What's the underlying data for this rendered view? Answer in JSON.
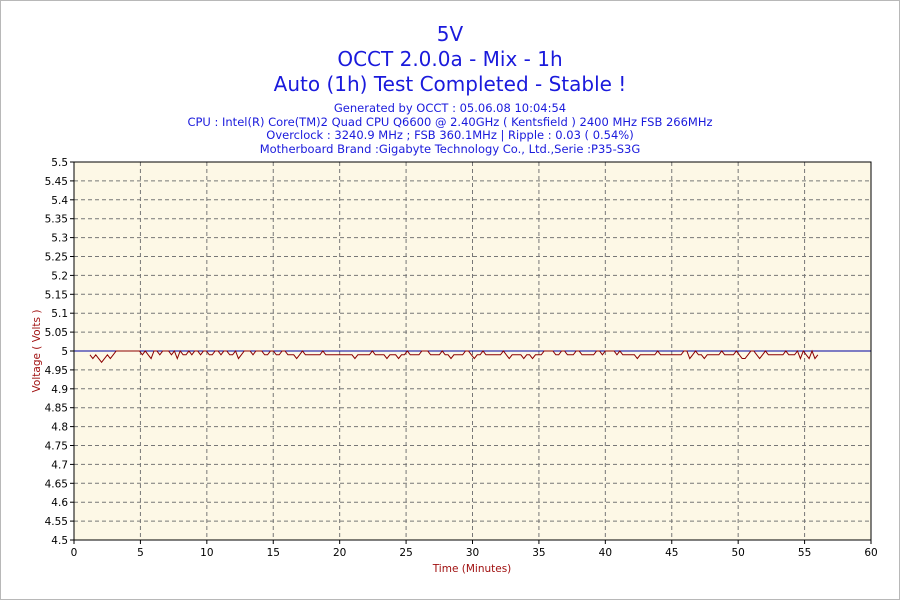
{
  "header": {
    "title": "5V",
    "subtitle": "OCCT 2.0.0a - Mix - 1h",
    "status": "Auto (1h) Test Completed - Stable !",
    "info_lines": [
      "Generated by OCCT : 05.06.08 10:04:54",
      "CPU : Intel(R) Core(TM)2 Quad CPU Q6600 @ 2.40GHz ( Kentsfield ) 2400 MHz FSB 266MHz",
      "Overclock : 3240.9 MHz ; FSB 360.1MHz | Ripple : 0.03 ( 0.54%)",
      "Motherboard Brand :Gigabyte Technology Co., Ltd.,Serie :P35-S3G"
    ]
  },
  "colors": {
    "title": "#1a1adc",
    "plot_background": "#fdf8e6",
    "series": "#8b0000",
    "reference_line": "#0000a0",
    "axis_label": "#a01010"
  },
  "chart_data": {
    "type": "line",
    "xlabel": "Time (Minutes)",
    "ylabel": "Voltage ( Volts )",
    "xlim": [
      0,
      60
    ],
    "ylim": [
      4.5,
      5.5
    ],
    "x_ticks": [
      "0",
      "5",
      "10",
      "15",
      "20",
      "25",
      "30",
      "35",
      "40",
      "45",
      "50",
      "55",
      "60"
    ],
    "y_ticks": [
      "5.5",
      "5.45",
      "5.4",
      "5.35",
      "5.3",
      "5.25",
      "5.2",
      "5.15",
      "5.1",
      "5.05",
      "5",
      "4.95",
      "4.9",
      "4.85",
      "4.8",
      "4.75",
      "4.7",
      "4.65",
      "4.6",
      "4.55",
      "4.5"
    ],
    "grid": true,
    "reference_value": 5.0,
    "series": [
      {
        "x_start": 1.2,
        "x_end": 56.0,
        "min": 4.97,
        "max": 5.0,
        "values": [
          4.99,
          4.98,
          4.99,
          4.98,
          4.97,
          4.98,
          4.99,
          4.98,
          4.99,
          5.0,
          5.0,
          5.0,
          5.0,
          5.0,
          5.0,
          5.0,
          5.0,
          5.0,
          4.99,
          5.0,
          4.99,
          4.98,
          5.0,
          5.0,
          4.99,
          5.0,
          5.0,
          5.0,
          4.99,
          5.0,
          4.98,
          5.0,
          4.99,
          4.99,
          5.0,
          4.99,
          5.0,
          5.0,
          4.99,
          5.0,
          5.0,
          4.99,
          4.99,
          5.0,
          5.0,
          4.99,
          5.0,
          5.0,
          4.99,
          4.99,
          5.0,
          4.98,
          4.99,
          5.0,
          5.0,
          5.0,
          4.99,
          5.0,
          5.0,
          5.0,
          4.99,
          4.99,
          5.0,
          5.0,
          4.99,
          4.99,
          5.0,
          5.0,
          4.99,
          4.99,
          4.99,
          4.98,
          4.99,
          5.0,
          4.99,
          4.99,
          4.99,
          4.99,
          4.99,
          4.99,
          5.0,
          4.99,
          4.99,
          4.99,
          4.99,
          4.99,
          4.99,
          4.99,
          4.99,
          4.99,
          4.99,
          4.98,
          4.99,
          4.99,
          4.99,
          4.99,
          4.99,
          5.0,
          4.99,
          4.99,
          4.99,
          4.99,
          4.98,
          4.99,
          4.99,
          4.99,
          4.98,
          4.99,
          4.99,
          5.0,
          4.99,
          4.99,
          4.99,
          4.99,
          5.0,
          5.0,
          5.0,
          4.99,
          4.99,
          4.99,
          4.99,
          5.0,
          4.99,
          4.99,
          4.98,
          4.99,
          4.99,
          4.99,
          4.99,
          5.0,
          5.0,
          4.99,
          4.98,
          4.99,
          4.99,
          5.0,
          4.99,
          4.99,
          4.99,
          4.99,
          4.99,
          4.99,
          5.0,
          4.99,
          4.98,
          4.99,
          4.99,
          4.99,
          4.99,
          4.98,
          4.99,
          4.99,
          4.98,
          4.99,
          4.99,
          4.99,
          5.0,
          5.0,
          5.0,
          5.0,
          4.99,
          4.99,
          5.0,
          5.0,
          4.99,
          4.99,
          4.99,
          5.0,
          5.0,
          4.99,
          4.99,
          4.99,
          4.99,
          4.99,
          5.0,
          5.0,
          4.99,
          5.0,
          5.0,
          5.0,
          5.0,
          4.99,
          5.0,
          4.99,
          4.99,
          4.99,
          4.99,
          4.99,
          4.98,
          4.99,
          4.99,
          4.99,
          4.99,
          4.99,
          4.99,
          5.0,
          4.99,
          4.99,
          4.99,
          4.99,
          4.99,
          4.99,
          4.99,
          4.99,
          5.0,
          5.0,
          4.98,
          4.99,
          5.0,
          4.99,
          4.99,
          4.98,
          4.99,
          4.99,
          4.99,
          4.99,
          4.99,
          5.0,
          4.99,
          4.99,
          4.99,
          4.99,
          5.0,
          4.99,
          4.98,
          4.98,
          4.99,
          5.0,
          5.0,
          4.99,
          4.98,
          4.99,
          5.0,
          4.99,
          4.99,
          4.99,
          4.99,
          4.99,
          4.99,
          5.0,
          4.99,
          4.99,
          4.99,
          5.0,
          4.98,
          5.0,
          4.99,
          4.98,
          5.0,
          4.98,
          4.99
        ]
      }
    ]
  }
}
